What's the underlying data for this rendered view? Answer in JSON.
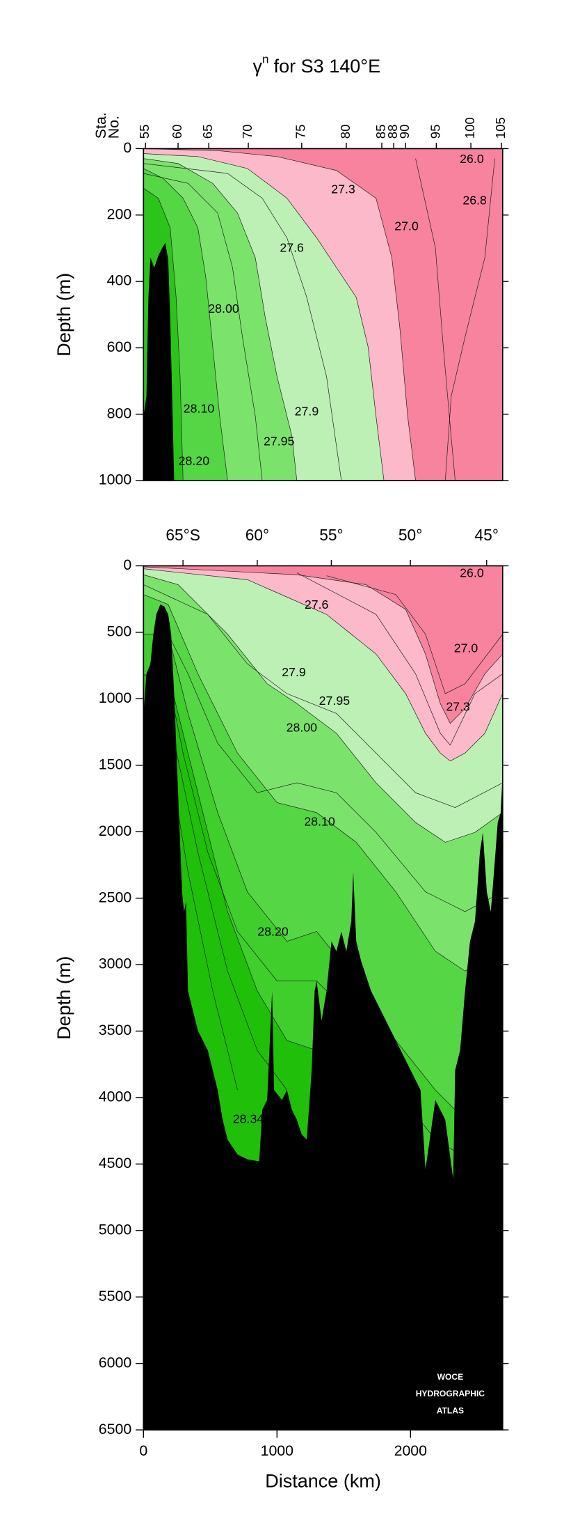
{
  "chart_data": [
    {
      "type": "contour",
      "title_symbol": "γ",
      "title_superscript": "n",
      "title": "for S3 140°E",
      "top_axis_label": [
        "Sta.",
        "No."
      ],
      "ylabel": "Depth (m)",
      "y_inverted": true,
      "xlim": [
        0,
        2690
      ],
      "ylim": [
        0,
        1000
      ],
      "yticks": [
        0,
        200,
        400,
        600,
        800,
        1000
      ],
      "top_ticks": [
        {
          "value": 15,
          "label": "55"
        },
        {
          "value": 259,
          "label": "60"
        },
        {
          "value": 489,
          "label": "65"
        },
        {
          "value": 785,
          "label": "70"
        },
        {
          "value": 1185,
          "label": "75"
        },
        {
          "value": 1519,
          "label": "80"
        },
        {
          "value": 1785,
          "label": "85"
        },
        {
          "value": 1874,
          "label": "88"
        },
        {
          "value": 1963,
          "label": "90"
        },
        {
          "value": 2193,
          "label": "95"
        },
        {
          "value": 2452,
          "label": "100"
        },
        {
          "value": 2681,
          "label": "105"
        }
      ],
      "annotations": [
        {
          "text": "26.0",
          "x": 2459,
          "y": 33
        },
        {
          "text": "26.8",
          "x": 2481,
          "y": 158
        },
        {
          "text": "27.3",
          "x": 1496,
          "y": 125
        },
        {
          "text": "27.0",
          "x": 1970,
          "y": 236
        },
        {
          "text": "27.6",
          "x": 1111,
          "y": 301
        },
        {
          "text": "28.00",
          "x": 600,
          "y": 484
        },
        {
          "text": "28.10",
          "x": 415,
          "y": 785
        },
        {
          "text": "27.9",
          "x": 1222,
          "y": 794
        },
        {
          "text": "27.95",
          "x": 1015,
          "y": 884
        },
        {
          "text": "28.20",
          "x": 378,
          "y": 943
        }
      ]
    },
    {
      "type": "contour",
      "ylabel": "Depth (m)",
      "xlabel": "Distance (km)",
      "y_inverted": true,
      "xlim": [
        0,
        2690
      ],
      "ylim": [
        0,
        6500
      ],
      "xticks": [
        0,
        1000,
        2000
      ],
      "yticks": [
        0,
        500,
        1000,
        1500,
        2000,
        2500,
        3000,
        3500,
        4000,
        4500,
        5000,
        5500,
        6000,
        6500
      ],
      "top_ticks": [
        {
          "value": 296,
          "label": "65°S"
        },
        {
          "value": 852,
          "label": "60°"
        },
        {
          "value": 1407,
          "label": "55°"
        },
        {
          "value": 1999,
          "label": "50°"
        },
        {
          "value": 2570,
          "label": "45°"
        }
      ],
      "annotations": [
        {
          "text": "26.0",
          "x": 2459,
          "y": 60
        },
        {
          "text": "27.6",
          "x": 1296,
          "y": 298
        },
        {
          "text": "27.0",
          "x": 2415,
          "y": 626
        },
        {
          "text": "27.9",
          "x": 1126,
          "y": 805
        },
        {
          "text": "27.95",
          "x": 1430,
          "y": 1021
        },
        {
          "text": "27.3",
          "x": 2356,
          "y": 1066
        },
        {
          "text": "28.00",
          "x": 1185,
          "y": 1222
        },
        {
          "text": "28.10",
          "x": 1319,
          "y": 1931
        },
        {
          "text": "28.20",
          "x": 970,
          "y": 2758
        },
        {
          "text": "28.34",
          "x": 785,
          "y": 4167
        }
      ],
      "logo": [
        "WOCE",
        "HYDROGRAPHIC",
        "ATLAS"
      ]
    }
  ]
}
